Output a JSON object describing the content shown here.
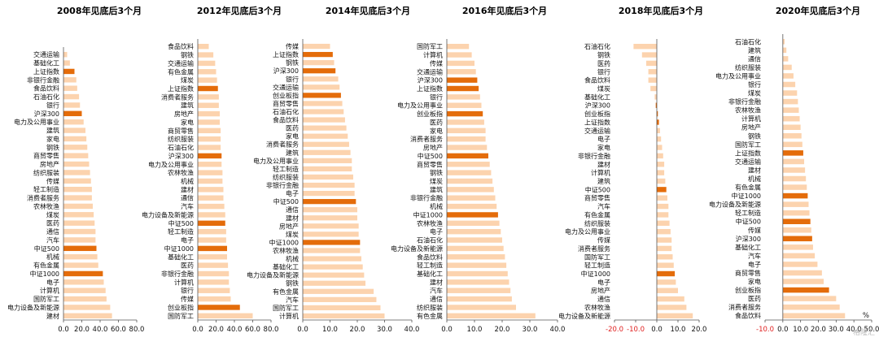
{
  "colors": {
    "bar": "#fcd3ae",
    "highlight": "#e46c0a",
    "negative_tick": "#e02020",
    "axis": "#555555"
  },
  "unit_label": "%",
  "watermark": "格隆汇",
  "chart_data": [
    {
      "type": "bar",
      "orientation": "horizontal",
      "title": "2008年见底后3个月",
      "xlim": [
        0,
        80
      ],
      "ticks": [
        0.0,
        20.0,
        40.0,
        60.0,
        80.0
      ],
      "ticks_text": [
        "0.0",
        "20.0",
        "40.0",
        "60.0",
        "80.0"
      ],
      "categories": [
        "交通运输",
        "基础化工",
        "上证指数",
        "非银行金融",
        "食品饮料",
        "石油石化",
        "银行",
        "沪深300",
        "电力及公用事业",
        "建筑",
        "家电",
        "钢铁",
        "商贸零售",
        "房地产",
        "纺织服装",
        "传媒",
        "轻工制造",
        "消费者服务",
        "农林牧渔",
        "煤炭",
        "医药",
        "通信",
        "汽车",
        "中证500",
        "机械",
        "有色金属",
        "中证1000",
        "电子",
        "计算机",
        "国防军工",
        "电力设备及新能源",
        "建材"
      ],
      "values": [
        4,
        7,
        12,
        14,
        15,
        17,
        18,
        20,
        22,
        24,
        25,
        26,
        27,
        28,
        29,
        30,
        31,
        31,
        32,
        33,
        34,
        35,
        35,
        36,
        37,
        38,
        43,
        44,
        46,
        47,
        51,
        53
      ],
      "highlight": [
        "上证指数",
        "沪深300",
        "中证500",
        "中证1000"
      ]
    },
    {
      "type": "bar",
      "orientation": "horizontal",
      "title": "2012年见底后3个月",
      "xlim": [
        0,
        80
      ],
      "ticks": [
        0.0,
        20.0,
        40.0,
        60.0,
        80.0
      ],
      "ticks_text": [
        "0.0",
        "20.0",
        "40.0",
        "60.0",
        "80.0"
      ],
      "categories": [
        "食品饮料",
        "钢铁",
        "交通运输",
        "有色金属",
        "煤炭",
        "上证指数",
        "消费者服务",
        "建筑",
        "房地产",
        "家电",
        "商贸零售",
        "纺织服装",
        "石油石化",
        "沪深300",
        "电力及公用事业",
        "农林牧渔",
        "机械",
        "建材",
        "通信",
        "汽车",
        "电力设备及新能源",
        "中证500",
        "轻工制造",
        "电子",
        "中证1000",
        "基础化工",
        "医药",
        "非银行金融",
        "计算机",
        "银行",
        "传媒",
        "创业板指",
        "国防军工"
      ],
      "values": [
        12,
        17,
        19,
        20,
        21,
        22,
        23,
        23,
        24,
        24,
        25,
        25,
        25,
        26,
        26,
        27,
        27,
        28,
        28,
        29,
        30,
        30,
        31,
        31,
        32,
        32,
        33,
        34,
        34,
        35,
        36,
        46,
        60
      ],
      "highlight": [
        "上证指数",
        "沪深300",
        "中证500",
        "中证1000",
        "创业板指"
      ]
    },
    {
      "type": "bar",
      "orientation": "horizontal",
      "title": "2014年见底后3个月",
      "xlim": [
        0,
        40
      ],
      "ticks": [
        0.0,
        10.0,
        20.0,
        30.0,
        40.0
      ],
      "ticks_text": [
        "0.0",
        "10.0",
        "20.0",
        "30.0",
        "40.0"
      ],
      "categories": [
        "传媒",
        "上证指数",
        "钢铁",
        "沪深300",
        "银行",
        "交通运输",
        "创业板指",
        "商贸零售",
        "石油石化",
        "食品饮料",
        "医药",
        "家电",
        "消费者服务",
        "建筑",
        "电力及公用事业",
        "轻工制造",
        "纺织服装",
        "非银行金融",
        "电子",
        "中证500",
        "通信",
        "建材",
        "房地产",
        "煤炭",
        "中证1000",
        "农林牧渔",
        "机械",
        "基础化工",
        "电力设备及新能源",
        "钢铁",
        "有色金属",
        "汽车",
        "国防军工",
        "计算机"
      ],
      "values": [
        10,
        11,
        11.5,
        12,
        13,
        13.5,
        14,
        14.5,
        15,
        15.5,
        16,
        16.5,
        17,
        17.5,
        18,
        18,
        18.5,
        19,
        19,
        19.5,
        20,
        20,
        20.5,
        20.5,
        21,
        21,
        21.5,
        22,
        22.5,
        23,
        26,
        27,
        28.5,
        30
      ],
      "highlight": [
        "上证指数",
        "沪深300",
        "创业板指",
        "中证500",
        "中证1000"
      ]
    },
    {
      "type": "bar",
      "orientation": "horizontal",
      "title": "2016年见底后3个月",
      "xlim": [
        0,
        40
      ],
      "ticks": [
        0.0,
        10.0,
        20.0,
        30.0,
        40.0
      ],
      "ticks_text": [
        "0.0",
        "10.0",
        "20.0",
        "30.0",
        "40.0"
      ],
      "categories": [
        "国防军工",
        "计算机",
        "传媒",
        "交通运输",
        "沪深300",
        "上证指数",
        "银行",
        "电力及公用事业",
        "创业板指",
        "医药",
        "家电",
        "消费者服务",
        "房地产",
        "中证500",
        "商贸零售",
        "钢铁",
        "煤炭",
        "建筑",
        "非银行金融",
        "机械",
        "中证1000",
        "农林牧渔",
        "电子",
        "石油石化",
        "电力设备及新能源",
        "食品饮料",
        "轻工制造",
        "基础化工",
        "建材",
        "汽车",
        "通信",
        "纺织服装",
        "有色金属"
      ],
      "values": [
        8,
        9,
        10,
        10.5,
        11,
        11.5,
        12,
        12.5,
        13,
        13.5,
        14,
        14,
        14.5,
        15,
        15.5,
        16,
        16.5,
        17,
        17.5,
        18,
        18.5,
        19,
        19.5,
        20,
        20.5,
        21,
        21.5,
        22,
        22.5,
        23,
        23.5,
        25,
        32
      ],
      "highlight": [
        "沪深300",
        "上证指数",
        "创业板指",
        "中证500",
        "中证1000"
      ]
    },
    {
      "type": "bar",
      "orientation": "horizontal",
      "title": "2018年见底后3个月",
      "xlim": [
        -20,
        20
      ],
      "ticks": [
        -20.0,
        -10.0,
        0.0,
        10.0,
        20.0
      ],
      "ticks_text": [
        "-20.0",
        "-10.0",
        "0.0",
        "10.0",
        "20.0"
      ],
      "categories": [
        "石油石化",
        "钢铁",
        "医药",
        "银行",
        "食品饮料",
        "煤炭",
        "基础化工",
        "沪深300",
        "创业板指",
        "上证指数",
        "交通运输",
        "电子",
        "家电",
        "非银行金融",
        "建材",
        "计算机",
        "建筑",
        "中证500",
        "商贸零售",
        "汽车",
        "有色金属",
        "纺织服装",
        "电力及公用事业",
        "传媒",
        "消费者服务",
        "国防军工",
        "轻工制造",
        "中证1000",
        "电子",
        "房地产",
        "通信",
        "农林牧渔",
        "电力设备及新能源"
      ],
      "values": [
        -11,
        -7,
        -5,
        -4,
        -4,
        -3,
        -1,
        -0.5,
        0.5,
        1,
        1.5,
        2,
        2.5,
        3,
        3.5,
        3.5,
        4,
        4.5,
        5,
        5.5,
        5.5,
        6,
        6.5,
        7,
        7,
        7.5,
        8,
        8.5,
        9,
        10,
        13,
        14,
        17
      ],
      "highlight": [
        "沪深300",
        "创业板指",
        "上证指数",
        "中证500",
        "中证1000"
      ]
    },
    {
      "type": "bar",
      "orientation": "horizontal",
      "title": "2020年见底后3个月",
      "xlim": [
        -10,
        50
      ],
      "ticks": [
        -10.0,
        0.0,
        10.0,
        20.0,
        30.0,
        40.0,
        50.0
      ],
      "ticks_text": [
        "-10.0",
        "0.0",
        "10.0",
        "20.0",
        "30.0",
        "40.0",
        "50.0"
      ],
      "categories": [
        "石油石化",
        "建筑",
        "通信",
        "纺织服装",
        "电力及公用事业",
        "银行",
        "煤炭",
        "非银行金融",
        "农林牧渔",
        "计算机",
        "房地产",
        "钢铁",
        "国防军工",
        "上证指数",
        "交通运输",
        "建材",
        "机械",
        "有色金属",
        "中证1000",
        "电力设备及新能源",
        "轻工制造",
        "中证500",
        "传媒",
        "沪深300",
        "基础化工",
        "汽车",
        "电子",
        "商贸零售",
        "家电",
        "创业板指",
        "医药",
        "消费者服务",
        "食品饮料"
      ],
      "values": [
        1,
        2,
        3,
        5,
        6,
        7,
        8,
        8.5,
        9,
        9.5,
        10,
        10.5,
        11,
        11.5,
        12,
        12.5,
        13,
        13.5,
        14,
        14.5,
        15,
        15.5,
        16,
        16.5,
        17,
        18,
        19.5,
        22,
        23,
        26,
        30,
        32,
        35
      ],
      "highlight": [
        "上证指数",
        "中证1000",
        "中证500",
        "沪深300",
        "创业板指"
      ]
    }
  ]
}
